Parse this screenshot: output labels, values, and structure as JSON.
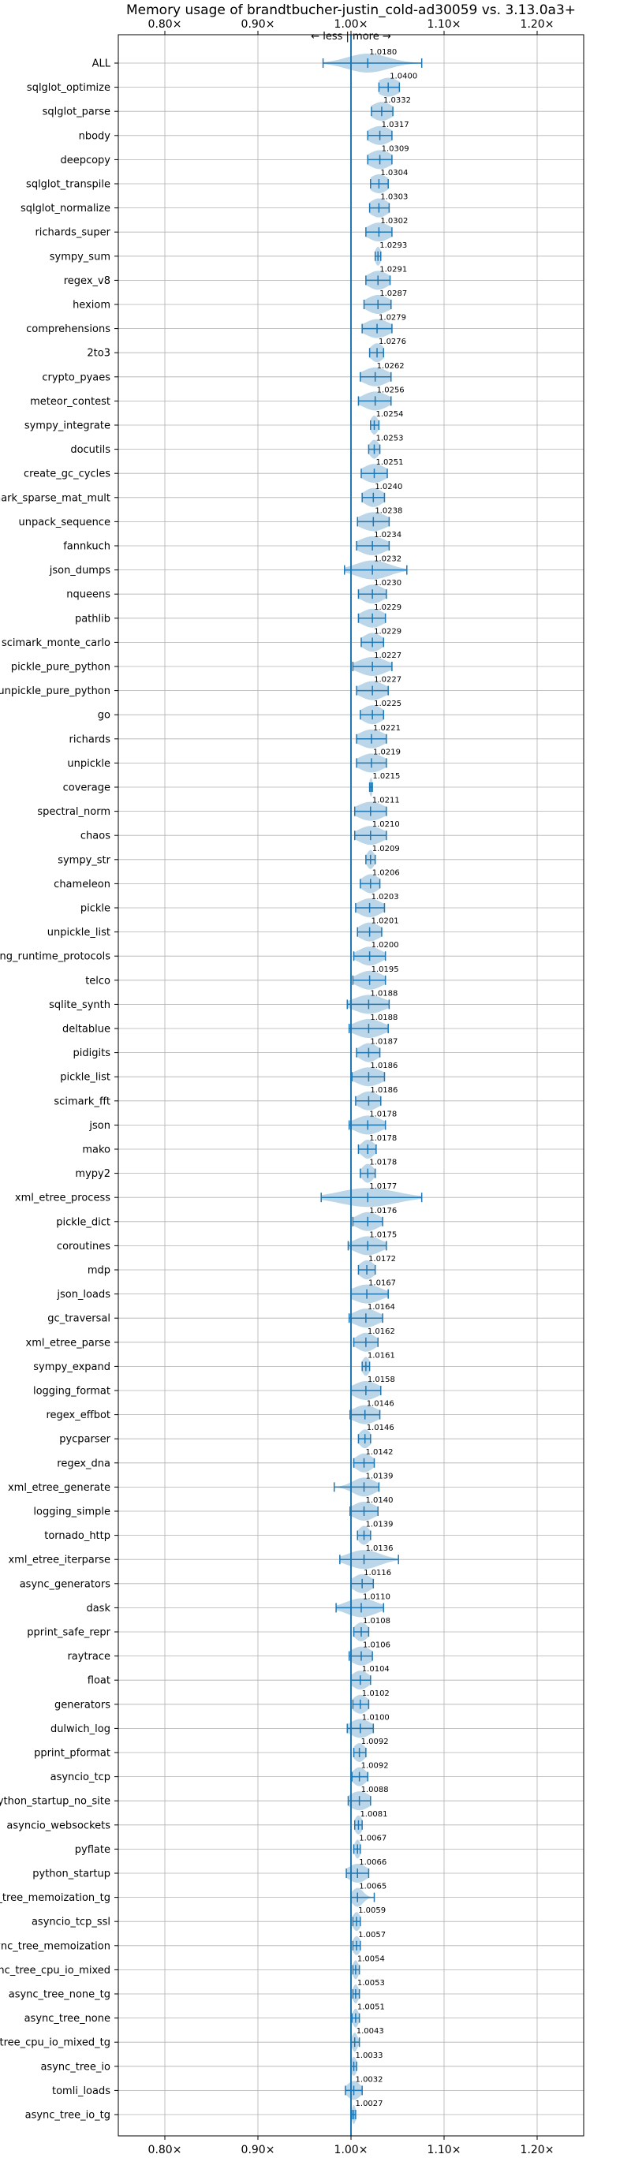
{
  "chart_data": {
    "type": "violin",
    "title": "Memory usage of brandtbucher-justin_cold-ad30059 vs. 3.13.0a3+",
    "annotation": "← less | more →",
    "xlim": [
      0.75,
      1.25
    ],
    "xticks": [
      0.8,
      0.9,
      1.0,
      1.1,
      1.2
    ],
    "xtick_labels": [
      "0.80×",
      "0.90×",
      "1.00×",
      "1.10×",
      "1.20×"
    ],
    "grid": true,
    "color": "#1f77b4",
    "reference_line": 1.0,
    "benchmarks": [
      {
        "name": "ALL",
        "value": "1.0180",
        "mean": 1.018,
        "min": 0.97,
        "max": 1.076,
        "spread": 0.022
      },
      {
        "name": "sqlglot_optimize",
        "value": "1.0400",
        "mean": 1.04,
        "min": 1.03,
        "max": 1.052,
        "spread": 0.012
      },
      {
        "name": "sqlglot_parse",
        "value": "1.0332",
        "mean": 1.033,
        "min": 1.022,
        "max": 1.045,
        "spread": 0.011
      },
      {
        "name": "nbody",
        "value": "1.0317",
        "mean": 1.031,
        "min": 1.018,
        "max": 1.044,
        "spread": 0.012
      },
      {
        "name": "deepcopy",
        "value": "1.0309",
        "mean": 1.031,
        "min": 1.018,
        "max": 1.044,
        "spread": 0.012
      },
      {
        "name": "sqlglot_transpile",
        "value": "1.0304",
        "mean": 1.03,
        "min": 1.021,
        "max": 1.04,
        "spread": 0.01
      },
      {
        "name": "sqlglot_normalize",
        "value": "1.0303",
        "mean": 1.03,
        "min": 1.02,
        "max": 1.041,
        "spread": 0.01
      },
      {
        "name": "richards_super",
        "value": "1.0302",
        "mean": 1.03,
        "min": 1.016,
        "max": 1.044,
        "spread": 0.012
      },
      {
        "name": "sympy_sum",
        "value": "1.0293",
        "mean": 1.029,
        "min": 1.026,
        "max": 1.032,
        "spread": 0.003
      },
      {
        "name": "regex_v8",
        "value": "1.0291",
        "mean": 1.029,
        "min": 1.016,
        "max": 1.042,
        "spread": 0.011
      },
      {
        "name": "hexiom",
        "value": "1.0287",
        "mean": 1.029,
        "min": 1.014,
        "max": 1.043,
        "spread": 0.012
      },
      {
        "name": "comprehensions",
        "value": "1.0279",
        "mean": 1.028,
        "min": 1.012,
        "max": 1.044,
        "spread": 0.013
      },
      {
        "name": "2to3",
        "value": "1.0276",
        "mean": 1.028,
        "min": 1.02,
        "max": 1.035,
        "spread": 0.007
      },
      {
        "name": "crypto_pyaes",
        "value": "1.0262",
        "mean": 1.026,
        "min": 1.01,
        "max": 1.043,
        "spread": 0.013
      },
      {
        "name": "meteor_contest",
        "value": "1.0256",
        "mean": 1.026,
        "min": 1.008,
        "max": 1.043,
        "spread": 0.013
      },
      {
        "name": "sympy_integrate",
        "value": "1.0254",
        "mean": 1.025,
        "min": 1.021,
        "max": 1.03,
        "spread": 0.004
      },
      {
        "name": "docutils",
        "value": "1.0253",
        "mean": 1.025,
        "min": 1.019,
        "max": 1.031,
        "spread": 0.005
      },
      {
        "name": "create_gc_cycles",
        "value": "1.0251",
        "mean": 1.025,
        "min": 1.011,
        "max": 1.039,
        "spread": 0.012
      },
      {
        "name": "scimark_sparse_mat_mult",
        "value": "1.0240",
        "mean": 1.024,
        "min": 1.012,
        "max": 1.036,
        "spread": 0.01
      },
      {
        "name": "unpack_sequence",
        "value": "1.0238",
        "mean": 1.024,
        "min": 1.007,
        "max": 1.041,
        "spread": 0.014
      },
      {
        "name": "fannkuch",
        "value": "1.0234",
        "mean": 1.023,
        "min": 1.006,
        "max": 1.041,
        "spread": 0.014
      },
      {
        "name": "json_dumps",
        "value": "1.0232",
        "mean": 1.023,
        "min": 0.993,
        "max": 1.06,
        "spread": 0.018
      },
      {
        "name": "nqueens",
        "value": "1.0230",
        "mean": 1.023,
        "min": 1.008,
        "max": 1.038,
        "spread": 0.012
      },
      {
        "name": "pathlib",
        "value": "1.0229",
        "mean": 1.023,
        "min": 1.008,
        "max": 1.037,
        "spread": 0.012
      },
      {
        "name": "scimark_monte_carlo",
        "value": "1.0229",
        "mean": 1.023,
        "min": 1.011,
        "max": 1.035,
        "spread": 0.01
      },
      {
        "name": "pickle_pure_python",
        "value": "1.0227",
        "mean": 1.023,
        "min": 1.002,
        "max": 1.044,
        "spread": 0.015
      },
      {
        "name": "unpickle_pure_python",
        "value": "1.0227",
        "mean": 1.023,
        "min": 1.006,
        "max": 1.04,
        "spread": 0.013
      },
      {
        "name": "go",
        "value": "1.0225",
        "mean": 1.023,
        "min": 1.01,
        "max": 1.035,
        "spread": 0.011
      },
      {
        "name": "richards",
        "value": "1.0221",
        "mean": 1.022,
        "min": 1.006,
        "max": 1.038,
        "spread": 0.013
      },
      {
        "name": "unpickle",
        "value": "1.0219",
        "mean": 1.022,
        "min": 1.006,
        "max": 1.038,
        "spread": 0.013
      },
      {
        "name": "coverage",
        "value": "1.0215",
        "mean": 1.0215,
        "min": 1.02,
        "max": 1.023,
        "spread": 0.001
      },
      {
        "name": "spectral_norm",
        "value": "1.0211",
        "mean": 1.021,
        "min": 1.004,
        "max": 1.038,
        "spread": 0.014
      },
      {
        "name": "chaos",
        "value": "1.0210",
        "mean": 1.021,
        "min": 1.004,
        "max": 1.038,
        "spread": 0.013
      },
      {
        "name": "sympy_str",
        "value": "1.0209",
        "mean": 1.021,
        "min": 1.016,
        "max": 1.026,
        "spread": 0.004
      },
      {
        "name": "chameleon",
        "value": "1.0206",
        "mean": 1.021,
        "min": 1.01,
        "max": 1.031,
        "spread": 0.009
      },
      {
        "name": "pickle",
        "value": "1.0203",
        "mean": 1.02,
        "min": 1.005,
        "max": 1.036,
        "spread": 0.012
      },
      {
        "name": "unpickle_list",
        "value": "1.0201",
        "mean": 1.02,
        "min": 1.007,
        "max": 1.033,
        "spread": 0.011
      },
      {
        "name": "typing_runtime_protocols",
        "value": "1.0200",
        "mean": 1.02,
        "min": 1.003,
        "max": 1.037,
        "spread": 0.012
      },
      {
        "name": "telco",
        "value": "1.0195",
        "mean": 1.02,
        "min": 1.002,
        "max": 1.037,
        "spread": 0.013
      },
      {
        "name": "sqlite_synth",
        "value": "1.0188",
        "mean": 1.019,
        "min": 0.996,
        "max": 1.041,
        "spread": 0.016
      },
      {
        "name": "deltablue",
        "value": "1.0188",
        "mean": 1.019,
        "min": 0.998,
        "max": 1.04,
        "spread": 0.015
      },
      {
        "name": "pidigits",
        "value": "1.0187",
        "mean": 1.019,
        "min": 1.006,
        "max": 1.031,
        "spread": 0.01
      },
      {
        "name": "pickle_list",
        "value": "1.0186",
        "mean": 1.019,
        "min": 1.001,
        "max": 1.036,
        "spread": 0.014
      },
      {
        "name": "scimark_fft",
        "value": "1.0186",
        "mean": 1.019,
        "min": 1.005,
        "max": 1.032,
        "spread": 0.011
      },
      {
        "name": "json",
        "value": "1.0178",
        "mean": 1.018,
        "min": 0.998,
        "max": 1.037,
        "spread": 0.014
      },
      {
        "name": "mako",
        "value": "1.0178",
        "mean": 1.018,
        "min": 1.008,
        "max": 1.027,
        "spread": 0.007
      },
      {
        "name": "mypy2",
        "value": "1.0178",
        "mean": 1.018,
        "min": 1.01,
        "max": 1.026,
        "spread": 0.006
      },
      {
        "name": "xml_etree_process",
        "value": "1.0177",
        "mean": 1.018,
        "min": 0.968,
        "max": 1.076,
        "spread": 0.03
      },
      {
        "name": "pickle_dict",
        "value": "1.0176",
        "mean": 1.018,
        "min": 1.002,
        "max": 1.034,
        "spread": 0.012
      },
      {
        "name": "coroutines",
        "value": "1.0175",
        "mean": 1.018,
        "min": 0.997,
        "max": 1.038,
        "spread": 0.014
      },
      {
        "name": "mdp",
        "value": "1.0172",
        "mean": 1.017,
        "min": 1.008,
        "max": 1.026,
        "spread": 0.008
      },
      {
        "name": "json_loads",
        "value": "1.0167",
        "mean": 1.017,
        "min": 1.0,
        "max": 1.04,
        "spread": 0.015
      },
      {
        "name": "gc_traversal",
        "value": "1.0164",
        "mean": 1.016,
        "min": 0.998,
        "max": 1.034,
        "spread": 0.013
      },
      {
        "name": "xml_etree_parse",
        "value": "1.0162",
        "mean": 1.016,
        "min": 1.003,
        "max": 1.029,
        "spread": 0.01
      },
      {
        "name": "sympy_expand",
        "value": "1.0161",
        "mean": 1.016,
        "min": 1.012,
        "max": 1.02,
        "spread": 0.004
      },
      {
        "name": "logging_format",
        "value": "1.0158",
        "mean": 1.016,
        "min": 1.0,
        "max": 1.032,
        "spread": 0.013
      },
      {
        "name": "regex_effbot",
        "value": "1.0146",
        "mean": 1.015,
        "min": 0.999,
        "max": 1.031,
        "spread": 0.013
      },
      {
        "name": "pycparser",
        "value": "1.0146",
        "mean": 1.015,
        "min": 1.008,
        "max": 1.021,
        "spread": 0.006
      },
      {
        "name": "regex_dna",
        "value": "1.0142",
        "mean": 1.014,
        "min": 1.003,
        "max": 1.025,
        "spread": 0.009
      },
      {
        "name": "xml_etree_generate",
        "value": "1.0139",
        "mean": 1.014,
        "min": 0.982,
        "max": 1.03,
        "spread": 0.012
      },
      {
        "name": "logging_simple",
        "value": "1.0140",
        "mean": 1.014,
        "min": 0.999,
        "max": 1.029,
        "spread": 0.012
      },
      {
        "name": "tornado_http",
        "value": "1.0139",
        "mean": 1.014,
        "min": 1.007,
        "max": 1.021,
        "spread": 0.006
      },
      {
        "name": "xml_etree_iterparse",
        "value": "1.0136",
        "mean": 1.014,
        "min": 0.988,
        "max": 1.051,
        "spread": 0.017
      },
      {
        "name": "async_generators",
        "value": "1.0116",
        "mean": 1.012,
        "min": 1.0,
        "max": 1.024,
        "spread": 0.01
      },
      {
        "name": "dask",
        "value": "1.0110",
        "mean": 1.011,
        "min": 0.984,
        "max": 1.035,
        "spread": 0.016
      },
      {
        "name": "pprint_safe_repr",
        "value": "1.0108",
        "mean": 1.011,
        "min": 1.003,
        "max": 1.019,
        "spread": 0.007
      },
      {
        "name": "raytrace",
        "value": "1.0106",
        "mean": 1.011,
        "min": 0.998,
        "max": 1.023,
        "spread": 0.011
      },
      {
        "name": "float",
        "value": "1.0104",
        "mean": 1.01,
        "min": 1.0,
        "max": 1.021,
        "spread": 0.009
      },
      {
        "name": "generators",
        "value": "1.0102",
        "mean": 1.01,
        "min": 1.002,
        "max": 1.019,
        "spread": 0.008
      },
      {
        "name": "dulwich_log",
        "value": "1.0100",
        "mean": 1.01,
        "min": 0.996,
        "max": 1.024,
        "spread": 0.011
      },
      {
        "name": "pprint_pformat",
        "value": "1.0092",
        "mean": 1.009,
        "min": 1.003,
        "max": 1.016,
        "spread": 0.006
      },
      {
        "name": "asyncio_tcp",
        "value": "1.0092",
        "mean": 1.009,
        "min": 1.001,
        "max": 1.018,
        "spread": 0.007
      },
      {
        "name": "python_startup_no_site",
        "value": "1.0088",
        "mean": 1.009,
        "min": 0.997,
        "max": 1.021,
        "spread": 0.011
      },
      {
        "name": "asyncio_websockets",
        "value": "1.0081",
        "mean": 1.008,
        "min": 1.004,
        "max": 1.012,
        "spread": 0.004
      },
      {
        "name": "pyflate",
        "value": "1.0067",
        "mean": 1.007,
        "min": 1.003,
        "max": 1.01,
        "spread": 0.003
      },
      {
        "name": "python_startup",
        "value": "1.0066",
        "mean": 1.007,
        "min": 0.995,
        "max": 1.019,
        "spread": 0.01
      },
      {
        "name": "async_tree_memoization_tg",
        "value": "1.0065",
        "mean": 1.007,
        "min": 1.0,
        "max": 1.025,
        "spread": 0.006
      },
      {
        "name": "asyncio_tcp_ssl",
        "value": "1.0059",
        "mean": 1.006,
        "min": 1.002,
        "max": 1.01,
        "spread": 0.004
      },
      {
        "name": "async_tree_memoization",
        "value": "1.0057",
        "mean": 1.006,
        "min": 1.002,
        "max": 1.01,
        "spread": 0.004
      },
      {
        "name": "async_tree_cpu_io_mixed",
        "value": "1.0054",
        "mean": 1.005,
        "min": 1.002,
        "max": 1.009,
        "spread": 0.003
      },
      {
        "name": "async_tree_none_tg",
        "value": "1.0053",
        "mean": 1.005,
        "min": 1.002,
        "max": 1.009,
        "spread": 0.003
      },
      {
        "name": "async_tree_none",
        "value": "1.0051",
        "mean": 1.005,
        "min": 1.001,
        "max": 1.009,
        "spread": 0.003
      },
      {
        "name": "async_tree_cpu_io_mixed_tg",
        "value": "1.0043",
        "mean": 1.004,
        "min": 1.0,
        "max": 1.009,
        "spread": 0.003
      },
      {
        "name": "async_tree_io",
        "value": "1.0033",
        "mean": 1.003,
        "min": 1.0,
        "max": 1.006,
        "spread": 0.003
      },
      {
        "name": "tomli_loads",
        "value": "1.0032",
        "mean": 1.003,
        "min": 0.994,
        "max": 1.012,
        "spread": 0.007
      },
      {
        "name": "async_tree_io_tg",
        "value": "1.0027",
        "mean": 1.003,
        "min": 1.001,
        "max": 1.005,
        "spread": 0.002
      }
    ]
  }
}
